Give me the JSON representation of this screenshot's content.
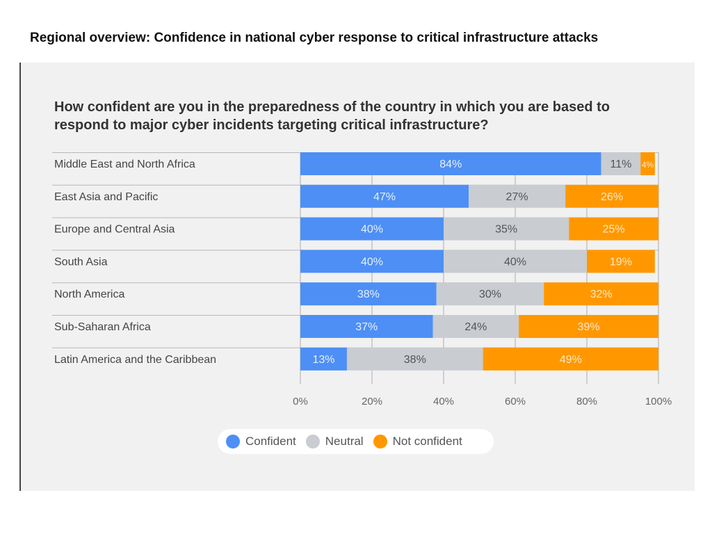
{
  "header": {
    "title": "Regional overview: Confidence in national cyber response to critical infrastructure attacks"
  },
  "chart_data": {
    "type": "bar",
    "orientation": "horizontal",
    "stacked": true,
    "title": "How confident are you in the preparedness of the country in which you are based to respond to major cyber incidents targeting critical infrastructure?",
    "categories": [
      "Middle East and North Africa",
      "East Asia and Pacific",
      "Europe and Central Asia",
      "South Asia",
      "North America",
      "Sub-Saharan Africa",
      "Latin America and the Caribbean"
    ],
    "series": [
      {
        "name": "Confident",
        "color": "#4d8ff5",
        "label_color": "#e8f0ff",
        "values": [
          84,
          47,
          40,
          40,
          38,
          37,
          13
        ]
      },
      {
        "name": "Neutral",
        "color": "#c9ccd1",
        "label_color": "#555555",
        "values": [
          11,
          27,
          35,
          40,
          30,
          24,
          38
        ]
      },
      {
        "name": "Not confident",
        "color": "#ff9800",
        "label_color": "#ffe9c4",
        "values": [
          4,
          26,
          25,
          19,
          32,
          39,
          49
        ]
      }
    ],
    "xticks": [
      "0%",
      "20%",
      "40%",
      "60%",
      "80%",
      "100%"
    ],
    "xlim": [
      0,
      100
    ],
    "grid": true,
    "legend": "bottom"
  }
}
